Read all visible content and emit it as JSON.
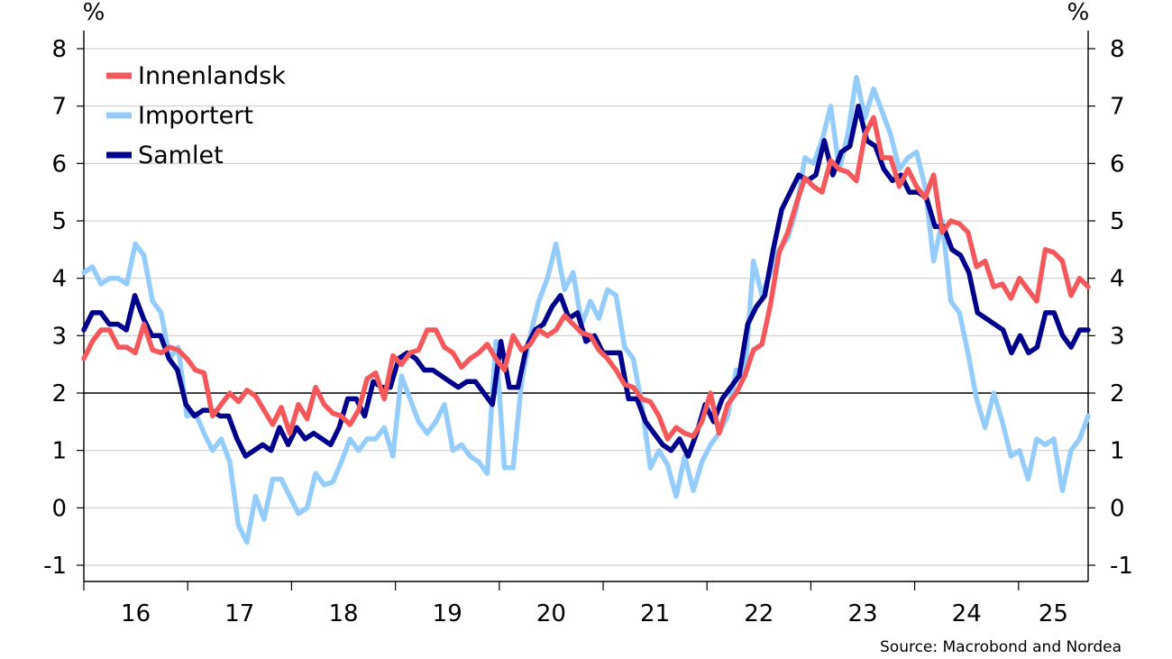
{
  "chart_data": {
    "type": "line",
    "y_unit_left": "%",
    "y_unit_right": "%",
    "ylim": [
      -1,
      8
    ],
    "y_ticks": [
      "-1",
      "0",
      "1",
      "2",
      "3",
      "4",
      "5",
      "6",
      "7",
      "8"
    ],
    "x_tick_labels": [
      "16",
      "17",
      "18",
      "19",
      "20",
      "21",
      "22",
      "23",
      "24",
      "25"
    ],
    "x_start_year": 2016,
    "x_end_year": 2025.67,
    "reference_line_y": 2,
    "grid": true,
    "legend_position": "top-left",
    "source": "Source: Macrobond and Nordea",
    "series": [
      {
        "name": "Innenlandsk",
        "color": "#f4585b",
        "values": [
          2.6,
          2.9,
          3.1,
          3.1,
          2.8,
          2.8,
          2.7,
          3.2,
          2.75,
          2.7,
          2.8,
          2.75,
          2.6,
          2.4,
          2.35,
          1.6,
          1.8,
          2.0,
          1.85,
          2.05,
          1.95,
          1.7,
          1.45,
          1.75,
          1.3,
          1.8,
          1.55,
          2.1,
          1.8,
          1.65,
          1.6,
          1.45,
          1.7,
          2.25,
          2.35,
          1.9,
          2.65,
          2.5,
          2.7,
          2.75,
          3.1,
          3.1,
          2.8,
          2.7,
          2.45,
          2.6,
          2.7,
          2.85,
          2.6,
          2.4,
          3.0,
          2.75,
          2.85,
          3.1,
          3.0,
          3.1,
          3.35,
          3.2,
          3.05,
          3.0,
          2.75,
          2.6,
          2.4,
          2.15,
          2.1,
          1.9,
          1.85,
          1.6,
          1.2,
          1.4,
          1.3,
          1.25,
          1.5,
          2.0,
          1.3,
          1.8,
          2.0,
          2.3,
          2.75,
          2.85,
          3.55,
          4.45,
          4.8,
          5.3,
          5.75,
          5.6,
          5.5,
          6.05,
          5.9,
          5.85,
          5.7,
          6.5,
          6.8,
          6.1,
          6.1,
          5.6,
          5.9,
          5.6,
          5.4,
          5.8,
          4.8,
          5.0,
          4.95,
          4.8,
          4.2,
          4.3,
          3.85,
          3.9,
          3.65,
          4.0,
          3.8,
          3.6,
          4.5,
          4.45,
          4.3,
          3.7,
          4.0,
          3.85
        ]
      },
      {
        "name": "Importert",
        "color": "#94cdfb",
        "values": [
          4.1,
          4.2,
          3.9,
          4.0,
          4.0,
          3.9,
          4.6,
          4.4,
          3.6,
          3.4,
          2.6,
          2.8,
          1.6,
          1.65,
          1.3,
          1.0,
          1.2,
          0.8,
          -0.3,
          -0.6,
          0.2,
          -0.2,
          0.5,
          0.5,
          0.2,
          -0.1,
          0.0,
          0.6,
          0.4,
          0.45,
          0.8,
          1.2,
          1.0,
          1.2,
          1.2,
          1.4,
          0.9,
          2.3,
          1.9,
          1.5,
          1.3,
          1.5,
          1.8,
          1.0,
          1.1,
          0.9,
          0.8,
          0.6,
          2.9,
          0.7,
          0.7,
          2.2,
          3.0,
          3.6,
          4.0,
          4.6,
          3.8,
          4.1,
          3.2,
          3.6,
          3.3,
          3.8,
          3.7,
          2.8,
          2.6,
          1.8,
          0.7,
          1.0,
          0.75,
          0.2,
          0.9,
          0.3,
          0.8,
          1.1,
          1.3,
          1.6,
          2.4,
          2.3,
          4.3,
          3.7,
          4.1,
          4.5,
          4.7,
          5.2,
          6.1,
          6.0,
          6.4,
          7.0,
          5.9,
          6.5,
          7.5,
          6.8,
          7.3,
          6.9,
          6.5,
          5.9,
          6.1,
          6.2,
          5.6,
          4.3,
          5.0,
          3.6,
          3.4,
          2.7,
          1.9,
          1.4,
          2.0,
          1.5,
          0.9,
          1.0,
          0.5,
          1.2,
          1.1,
          1.2,
          0.3,
          1.0,
          1.2,
          1.6
        ]
      },
      {
        "name": "Samlet",
        "color": "#00008c",
        "values": [
          3.1,
          3.4,
          3.4,
          3.2,
          3.2,
          3.1,
          3.7,
          3.3,
          3.0,
          3.0,
          2.6,
          2.4,
          1.8,
          1.6,
          1.7,
          1.7,
          1.6,
          1.6,
          1.2,
          0.9,
          1.0,
          1.1,
          1.0,
          1.4,
          1.1,
          1.4,
          1.2,
          1.3,
          1.2,
          1.1,
          1.4,
          1.9,
          1.9,
          1.6,
          2.2,
          2.1,
          2.1,
          2.6,
          2.7,
          2.6,
          2.4,
          2.4,
          2.3,
          2.2,
          2.1,
          2.2,
          2.2,
          2.0,
          1.8,
          2.9,
          2.1,
          2.1,
          2.8,
          3.1,
          3.2,
          3.5,
          3.7,
          3.3,
          3.4,
          2.9,
          3.0,
          2.7,
          2.7,
          2.7,
          1.9,
          1.9,
          1.5,
          1.3,
          1.1,
          1.0,
          1.2,
          0.9,
          1.3,
          1.8,
          1.5,
          1.9,
          2.1,
          2.3,
          3.2,
          3.5,
          3.7,
          4.5,
          5.2,
          5.5,
          5.8,
          5.7,
          5.8,
          6.4,
          5.8,
          6.2,
          6.3,
          7.0,
          6.4,
          6.3,
          5.9,
          5.7,
          5.8,
          5.5,
          5.5,
          5.4,
          4.9,
          4.9,
          4.5,
          4.4,
          4.1,
          3.4,
          3.3,
          3.2,
          3.1,
          2.7,
          3.0,
          2.7,
          2.8,
          3.4,
          3.4,
          3.0,
          2.8,
          3.1,
          3.1
        ]
      }
    ]
  }
}
